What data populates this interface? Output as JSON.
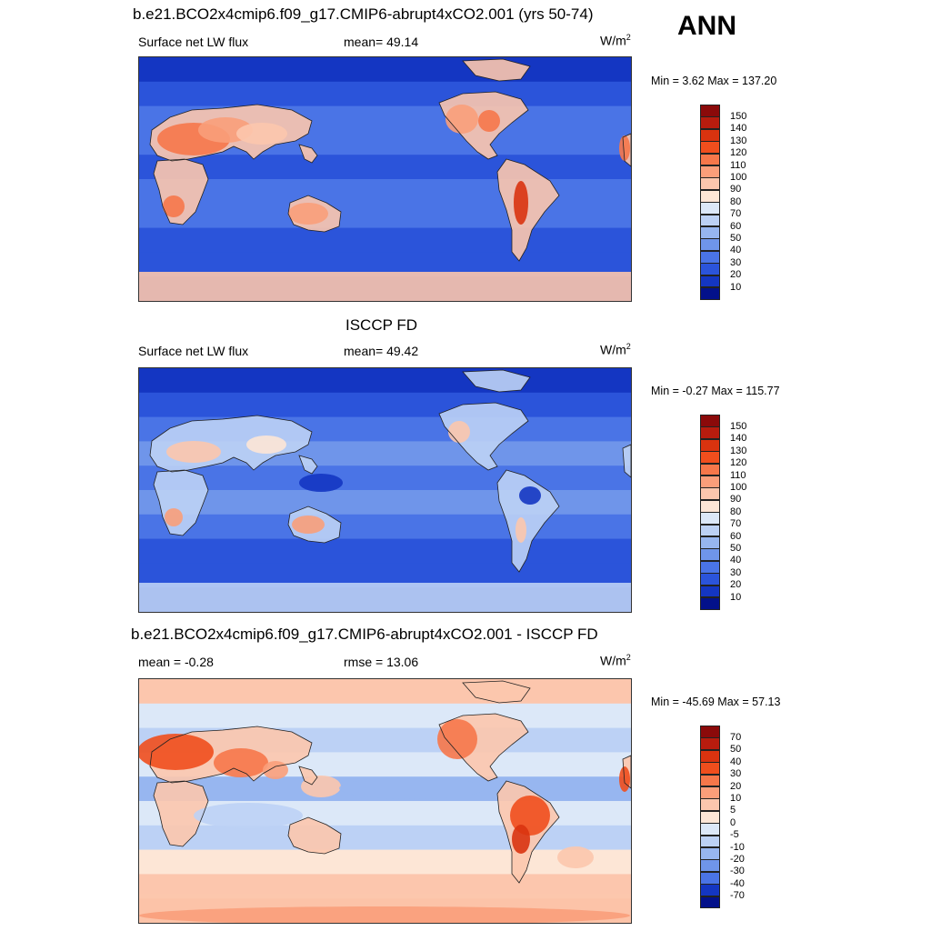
{
  "season": "ANN",
  "panels": [
    {
      "title": "b.e21.BCO2x4cmip6.f09_g17.CMIP6-abrupt4xCO2.001 (yrs 50-74)",
      "left_label": "Surface net LW flux",
      "center_label": "mean=  49.14",
      "units": "W/m",
      "units_sup": "2",
      "minmax": "Min =   3.62 Max = 137.20",
      "map_kind": "model",
      "colorbar": {
        "labels": [
          "150",
          "140",
          "130",
          "120",
          "110",
          "100",
          "90",
          "80",
          "70",
          "60",
          "50",
          "40",
          "30",
          "20",
          "10"
        ],
        "colors": [
          "#8b0a0a",
          "#b81c0e",
          "#d9330f",
          "#f04e1d",
          "#f6774a",
          "#fa9e7a",
          "#fcc6ad",
          "#fde6d6",
          "#dce8f8",
          "#bcd1f5",
          "#97b6f0",
          "#6f95ea",
          "#4a74e6",
          "#2b54da",
          "#1436c2",
          "#03118a"
        ]
      }
    },
    {
      "title": "ISCCP FD",
      "left_label": "Surface net LW flux",
      "center_label": "mean=  49.42",
      "units": "W/m",
      "units_sup": "2",
      "minmax": "Min =  -0.27 Max = 115.77",
      "map_kind": "obs",
      "colorbar": {
        "labels": [
          "150",
          "140",
          "130",
          "120",
          "110",
          "100",
          "90",
          "80",
          "70",
          "60",
          "50",
          "40",
          "30",
          "20",
          "10"
        ],
        "colors": [
          "#8b0a0a",
          "#b81c0e",
          "#d9330f",
          "#f04e1d",
          "#f6774a",
          "#fa9e7a",
          "#fcc6ad",
          "#fde6d6",
          "#dce8f8",
          "#bcd1f5",
          "#97b6f0",
          "#6f95ea",
          "#4a74e6",
          "#2b54da",
          "#1436c2",
          "#03118a"
        ]
      }
    },
    {
      "title": "b.e21.BCO2x4cmip6.f09_g17.CMIP6-abrupt4xCO2.001 - ISCCP FD",
      "left_label": "mean =  -0.28",
      "center_label": "rmse =  13.06",
      "units": "W/m",
      "units_sup": "2",
      "minmax": "Min = -45.69 Max =  57.13",
      "map_kind": "diff",
      "colorbar": {
        "labels": [
          "70",
          "50",
          "40",
          "30",
          "20",
          "10",
          "5",
          "0",
          "-5",
          "-10",
          "-20",
          "-30",
          "-40",
          "-70"
        ],
        "colors": [
          "#8b0a0a",
          "#b81c0e",
          "#d9330f",
          "#f04e1d",
          "#f6774a",
          "#fa9e7a",
          "#fcc6ad",
          "#fde6d6",
          "#dce8f8",
          "#bcd1f5",
          "#97b6f0",
          "#6f95ea",
          "#4a74e6",
          "#1436c2",
          "#03118a"
        ]
      }
    }
  ]
}
